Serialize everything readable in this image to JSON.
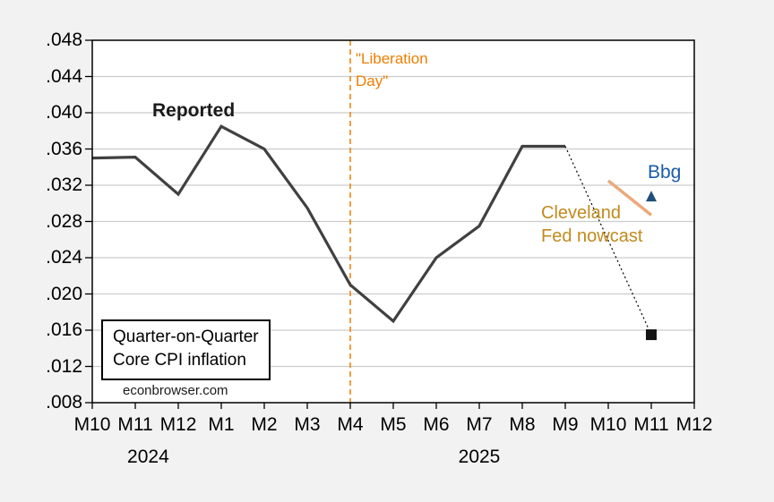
{
  "page": {
    "background_color": "#f2f2f2",
    "plot_background": "#ffffff",
    "gridline_color": "#cccccc"
  },
  "annotations": {
    "reported": "Reported",
    "liberation": {
      "line1": "\"Liberation",
      "line2": "Day\""
    },
    "cleveland": {
      "line1": "Cleveland",
      "line2": "Fed nowcast"
    },
    "bbg": "Bbg",
    "info_box": {
      "line1": "Quarter-on-Quarter",
      "line2": "Core CPI inflation"
    }
  },
  "source_label": "econbrowser.com",
  "chart_data": {
    "type": "line",
    "title": "Quarter-on-Quarter Core CPI inflation",
    "xlabel": "",
    "ylabel": "",
    "grid": "horizontal",
    "legend_position": "none",
    "ylim": [
      0.008,
      0.048
    ],
    "y_ticks": [
      {
        "label": ".008",
        "value": 0.008
      },
      {
        "label": ".012",
        "value": 0.012
      },
      {
        "label": ".016",
        "value": 0.016
      },
      {
        "label": ".020",
        "value": 0.02
      },
      {
        "label": ".024",
        "value": 0.024
      },
      {
        "label": ".028",
        "value": 0.028
      },
      {
        "label": ".032",
        "value": 0.032
      },
      {
        "label": ".036",
        "value": 0.036
      },
      {
        "label": ".040",
        "value": 0.04
      },
      {
        "label": ".044",
        "value": 0.044
      },
      {
        "label": ".048",
        "value": 0.048
      }
    ],
    "x_categories": [
      "M10",
      "M11",
      "M12",
      "M1",
      "M2",
      "M3",
      "M4",
      "M5",
      "M6",
      "M7",
      "M8",
      "M9",
      "M10",
      "M11",
      "M12"
    ],
    "year_labels": [
      {
        "text": "2024",
        "at_index": 1.3
      },
      {
        "text": "2025",
        "at_index": 9.0
      }
    ],
    "event_line": {
      "at_index": 6,
      "category": "M4",
      "year": "2025",
      "style": "dashed",
      "color": "#f07d00",
      "label": "\"Liberation Day\""
    },
    "series": [
      {
        "name": "Reported",
        "type": "line",
        "color": "#404040",
        "width": 3.2,
        "start_index": 0,
        "values": [
          0.035,
          0.0351,
          0.031,
          0.0385,
          0.036,
          0.0295,
          0.021,
          0.017,
          0.024,
          0.0275,
          0.0363,
          0.0363
        ]
      },
      {
        "name": "Forecast path",
        "type": "dotted-line",
        "color": "#000000",
        "width": 1.2,
        "points": [
          {
            "index": 11,
            "value": 0.0363
          },
          {
            "index": 13,
            "value": 0.0155
          }
        ],
        "end_marker": "square",
        "marker_color": "#141414",
        "marker_size": 12
      },
      {
        "name": "Cleveland Fed nowcast",
        "type": "line",
        "color": "#eca87a",
        "width": 3.5,
        "points": [
          {
            "index": 12,
            "value": 0.0325
          },
          {
            "index": 13,
            "value": 0.0287
          }
        ]
      },
      {
        "name": "Bbg",
        "type": "point",
        "marker": "triangle-up",
        "color": "#1f4e79",
        "marker_size": 12,
        "points": [
          {
            "index": 13,
            "value": 0.0307
          }
        ]
      }
    ]
  }
}
